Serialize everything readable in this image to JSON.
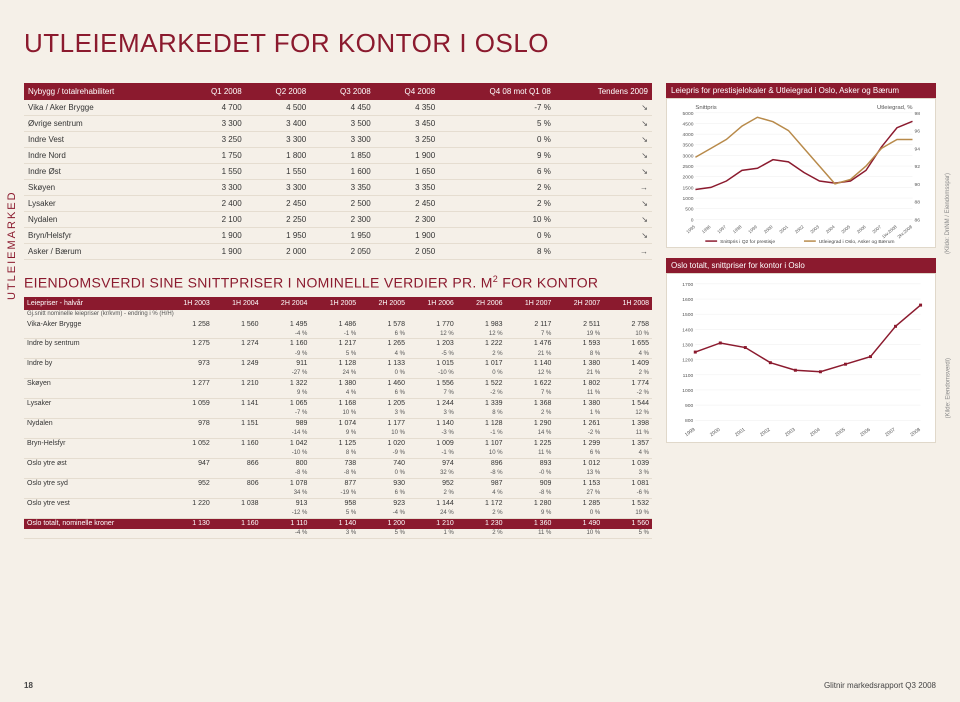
{
  "page_title": "UTLEIEMARKEDET FOR KONTOR I OSLO",
  "vertical_label": "UTLEIEMARKED",
  "page_number": "18",
  "footer_text": "Glitnir markedsrapport Q3 2008",
  "table1": {
    "headers": [
      "Nybygg / totalrehabilitert",
      "Q1 2008",
      "Q2 2008",
      "Q3 2008",
      "Q4 2008",
      "Q4 08 mot Q1 08",
      "Tendens 2009"
    ],
    "rows": [
      {
        "cells": [
          "Vika / Aker Brygge",
          "4 700",
          "4 500",
          "4 450",
          "4 350",
          "-7 %"
        ],
        "trend": "down"
      },
      {
        "cells": [
          "Øvrige sentrum",
          "3 300",
          "3 400",
          "3 500",
          "3 450",
          "5 %"
        ],
        "trend": "down"
      },
      {
        "cells": [
          "Indre Vest",
          "3 250",
          "3 300",
          "3 300",
          "3 250",
          "0 %"
        ],
        "trend": "down"
      },
      {
        "cells": [
          "Indre Nord",
          "1 750",
          "1 800",
          "1 850",
          "1 900",
          "9 %"
        ],
        "trend": "down"
      },
      {
        "cells": [
          "Indre Øst",
          "1 550",
          "1 550",
          "1 600",
          "1 650",
          "6 %"
        ],
        "trend": "down"
      },
      {
        "cells": [
          "Skøyen",
          "3 300",
          "3 300",
          "3 350",
          "3 350",
          "2 %"
        ],
        "trend": "right"
      },
      {
        "cells": [
          "Lysaker",
          "2 400",
          "2 450",
          "2 500",
          "2 450",
          "2 %"
        ],
        "trend": "down"
      },
      {
        "cells": [
          "Nydalen",
          "2 100",
          "2 250",
          "2 300",
          "2 300",
          "10 %"
        ],
        "trend": "down"
      },
      {
        "cells": [
          "Bryn/Helsfyr",
          "1 900",
          "1 950",
          "1 950",
          "1 900",
          "0 %"
        ],
        "trend": "down"
      },
      {
        "cells": [
          "Asker / Bærum",
          "1 900",
          "2 000",
          "2 050",
          "2 050",
          "8 %"
        ],
        "trend": "right"
      }
    ]
  },
  "subtitle": "EIENDOMSVERDI SINE SNITTPRISER I NOMINELLE VERDIER PR. M",
  "subtitle_sup": "2",
  "subtitle_tail": " FOR KONTOR",
  "table2": {
    "headers": [
      "Leiepriser - halvår",
      "1H 2003",
      "1H 2004",
      "2H 2004",
      "1H 2005",
      "2H 2005",
      "1H 2006",
      "2H 2006",
      "1H 2007",
      "2H 2007",
      "1H 2008"
    ],
    "note": "Gj.snitt nominelle leiepriser (kr/kvm) - endring i % (H/H)",
    "rows": [
      {
        "label": "Vika-Aker Brygge",
        "vals": [
          "1 258",
          "1 560",
          "1 495",
          "1 486",
          "1 578",
          "1 770",
          "1 983",
          "2 117",
          "2 511",
          "2 758"
        ],
        "pcts": [
          "",
          "",
          "-4 %",
          "-1 %",
          "6 %",
          "12 %",
          "12 %",
          "7 %",
          "19 %",
          "10 %"
        ]
      },
      {
        "label": "Indre by sentrum",
        "vals": [
          "1 275",
          "1 274",
          "1 160",
          "1 217",
          "1 265",
          "1 203",
          "1 222",
          "1 476",
          "1 593",
          "1 655"
        ],
        "pcts": [
          "",
          "",
          "-9 %",
          "5 %",
          "4 %",
          "-5 %",
          "2 %",
          "21 %",
          "8 %",
          "4 %"
        ]
      },
      {
        "label": "Indre by",
        "vals": [
          "973",
          "1 249",
          "911",
          "1 128",
          "1 133",
          "1 015",
          "1 017",
          "1 140",
          "1 380",
          "1 409"
        ],
        "pcts": [
          "",
          "",
          "-27 %",
          "24 %",
          "0 %",
          "-10 %",
          "0 %",
          "12 %",
          "21 %",
          "2 %"
        ]
      },
      {
        "label": "Skøyen",
        "vals": [
          "1 277",
          "1 210",
          "1 322",
          "1 380",
          "1 460",
          "1 556",
          "1 522",
          "1 622",
          "1 802",
          "1 774"
        ],
        "pcts": [
          "",
          "",
          "9 %",
          "4 %",
          "6 %",
          "7 %",
          "-2 %",
          "7 %",
          "11 %",
          "-2 %"
        ]
      },
      {
        "label": "Lysaker",
        "vals": [
          "1 059",
          "1 141",
          "1 065",
          "1 168",
          "1 205",
          "1 244",
          "1 339",
          "1 368",
          "1 380",
          "1 544"
        ],
        "pcts": [
          "",
          "",
          "-7 %",
          "10 %",
          "3 %",
          "3 %",
          "8 %",
          "2 %",
          "1 %",
          "12 %"
        ]
      },
      {
        "label": "Nydalen",
        "vals": [
          "978",
          "1 151",
          "989",
          "1 074",
          "1 177",
          "1 140",
          "1 128",
          "1 290",
          "1 261",
          "1 398"
        ],
        "pcts": [
          "",
          "",
          "-14 %",
          "9 %",
          "10 %",
          "-3 %",
          "-1 %",
          "14 %",
          "-2 %",
          "11 %"
        ]
      },
      {
        "label": "Bryn-Helsfyr",
        "vals": [
          "1 052",
          "1 160",
          "1 042",
          "1 125",
          "1 020",
          "1 009",
          "1 107",
          "1 225",
          "1 299",
          "1 357"
        ],
        "pcts": [
          "",
          "",
          "-10 %",
          "8 %",
          "-9 %",
          "-1 %",
          "10 %",
          "11 %",
          "6 %",
          "4 %"
        ]
      },
      {
        "label": "Oslo ytre øst",
        "vals": [
          "947",
          "866",
          "800",
          "738",
          "740",
          "974",
          "896",
          "893",
          "1 012",
          "1 039"
        ],
        "pcts": [
          "",
          "",
          "-8 %",
          "-8 %",
          "0 %",
          "32 %",
          "-8 %",
          "-0 %",
          "13 %",
          "3 %"
        ]
      },
      {
        "label": "Oslo ytre syd",
        "vals": [
          "952",
          "806",
          "1 078",
          "877",
          "930",
          "952",
          "987",
          "909",
          "1 153",
          "1 081"
        ],
        "pcts": [
          "",
          "",
          "34 %",
          "-19 %",
          "6 %",
          "2 %",
          "4 %",
          "-8 %",
          "27 %",
          "-6 %"
        ]
      },
      {
        "label": "Oslo ytre vest",
        "vals": [
          "1 220",
          "1 038",
          "913",
          "958",
          "923",
          "1 144",
          "1 172",
          "1 280",
          "1 285",
          "1 532"
        ],
        "pcts": [
          "",
          "",
          "-12 %",
          "5 %",
          "-4 %",
          "24 %",
          "2 %",
          "9 %",
          "0 %",
          "19 %"
        ]
      }
    ],
    "total_label": "Oslo totalt, nominelle kroner",
    "total_vals": [
      "1 130",
      "1 160",
      "1 110",
      "1 140",
      "1 200",
      "1 210",
      "1 230",
      "1 360",
      "1 490",
      "1 560"
    ],
    "total_pcts": [
      "",
      "",
      "-4 %",
      "3 %",
      "5 %",
      "1 %",
      "2 %",
      "11 %",
      "10 %",
      "5 %"
    ]
  },
  "chart1": {
    "title": "Leiepris for prestisjelokaler & Utleiegrad i Oslo, Asker og Bærum",
    "y1_label": "Snittpris",
    "y2_label": "Utleiegrad, %",
    "y1_min": 0,
    "y1_max": 5000,
    "y1_ticks": [
      "0",
      "500",
      "1000",
      "1500",
      "2000",
      "2500",
      "3000",
      "3500",
      "4000",
      "4500",
      "5000"
    ],
    "y2_ticks": [
      "86",
      "88",
      "90",
      "92",
      "94",
      "96",
      "98"
    ],
    "x_labels": [
      "1995",
      "1996",
      "1997",
      "1998",
      "1999",
      "2000",
      "2001",
      "2002",
      "2003",
      "2004",
      "2005",
      "2006",
      "2007",
      "1kv.2008",
      "2kv.2008"
    ],
    "series1": {
      "name": "Snittpris i Q2 for prestisje",
      "color": "#8b1a2e",
      "values": [
        1400,
        1500,
        1800,
        2300,
        2400,
        2800,
        2700,
        2200,
        1800,
        1700,
        1800,
        2300,
        3400,
        4300,
        4600
      ]
    },
    "series2": {
      "name": "Utleiegrad i Oslo, Asker og Bærum",
      "color": "#b88a4a",
      "values": [
        93,
        94,
        95,
        96.5,
        97.5,
        97,
        96,
        94,
        92,
        90,
        90.5,
        92,
        94,
        95,
        95
      ]
    },
    "source": "(Kilde: DnNM / Eiendomsspar)"
  },
  "chart2": {
    "title": "Oslo totalt, snittpriser for kontor i Oslo",
    "y_min": 800,
    "y_max": 1700,
    "y_ticks": [
      "800",
      "900",
      "1000",
      "1100",
      "1200",
      "1300",
      "1400",
      "1500",
      "1600",
      "1700"
    ],
    "x_labels": [
      "1999",
      "2000",
      "2001",
      "2002",
      "2003",
      "2004",
      "2005",
      "2006",
      "2007",
      "2008"
    ],
    "series": {
      "color": "#8b1a2e",
      "values": [
        1250,
        1310,
        1280,
        1180,
        1130,
        1120,
        1170,
        1220,
        1420,
        1560
      ]
    },
    "source": "(Kilde: Eiendomsverdi)"
  }
}
